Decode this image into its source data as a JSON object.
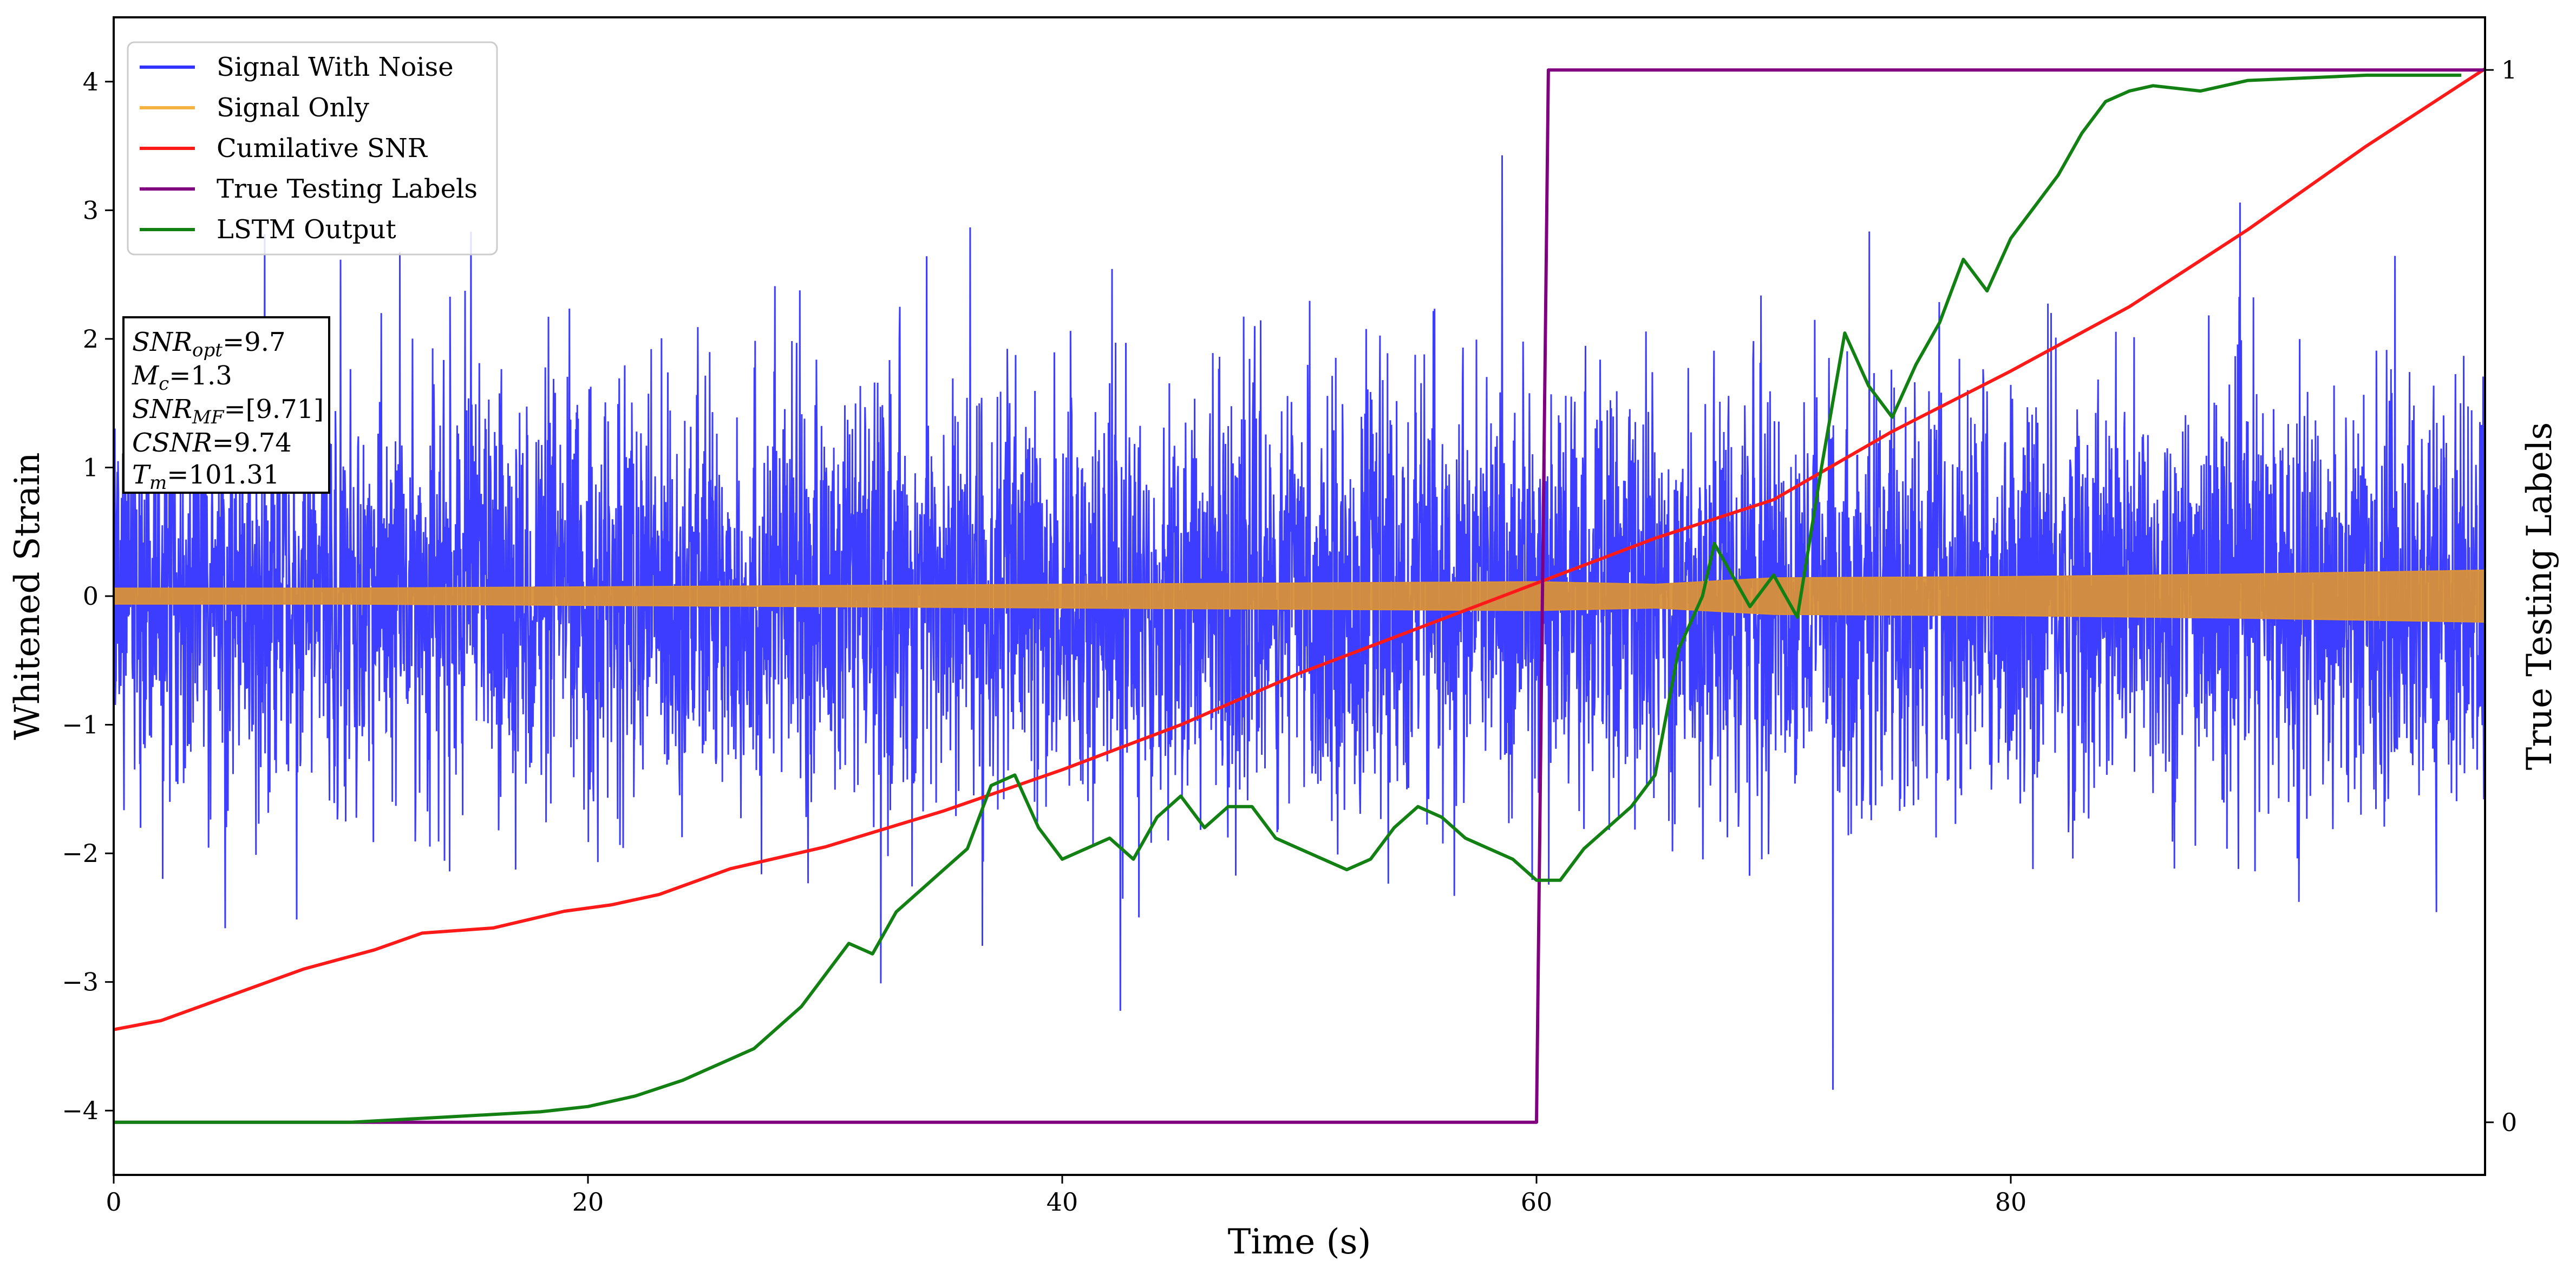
{
  "chart_data": {
    "type": "line",
    "xlabel": "Time (s)",
    "ylabel": "Whitened Strain",
    "ylabel_right": "True Testing Labels",
    "xlim": [
      0,
      100
    ],
    "ylim": [
      -4.5,
      4.5
    ],
    "ylim_right": [
      -0.05,
      1.05
    ],
    "x_ticks": [
      "0",
      "20",
      "40",
      "60",
      "80"
    ],
    "y_ticks": [
      "−4",
      "−3",
      "−2",
      "−1",
      "0",
      "1",
      "2",
      "3",
      "4"
    ],
    "y_right_ticks": [
      "0",
      "1"
    ],
    "grid": false,
    "legend_position": "top-left",
    "legend": [
      {
        "label": "Signal With Noise",
        "color": "#3333ff"
      },
      {
        "label": "Signal Only",
        "color": "#f5b342"
      },
      {
        "label": "Cumilative SNR",
        "color": "#ff1a1a"
      },
      {
        "label": "True Testing Labels",
        "color": "#800080"
      },
      {
        "label": "LSTM Output",
        "color": "#138013"
      }
    ],
    "info_box": {
      "snr_opt": {
        "sym": "SNR",
        "sub": "opt",
        "value": "=9.7"
      },
      "mc": {
        "sym": "M",
        "sub": "c",
        "value": "=1.3"
      },
      "snr_mf": {
        "sym": "SNR",
        "sub": "MF",
        "value": "=[9.71]"
      },
      "csnr": {
        "sym": "CSNR",
        "value": "=9.74"
      },
      "tm": {
        "sym": "T",
        "sub": "m",
        "value": "=101.31"
      }
    },
    "series": [
      {
        "name": "Signal With Noise",
        "axis": "left",
        "noise_sigma": 0.8,
        "amplitude_range": [
          -4.1,
          3.6
        ],
        "x_range": [
          0,
          100
        ]
      },
      {
        "name": "Signal Only",
        "axis": "left",
        "envelope": {
          "x": [
            0,
            10,
            20,
            30,
            40,
            50,
            60,
            65,
            70,
            80,
            90,
            100
          ],
          "amplitude": [
            0.06,
            0.06,
            0.07,
            0.08,
            0.09,
            0.1,
            0.11,
            0.09,
            0.14,
            0.15,
            0.17,
            0.2
          ]
        }
      },
      {
        "name": "Cumilative SNR",
        "axis": "left",
        "x": [
          0,
          2,
          5,
          8,
          11,
          13,
          16,
          19,
          21,
          23,
          26,
          30,
          35,
          40,
          45,
          50,
          55,
          60,
          65,
          70,
          75,
          80,
          85,
          90,
          95,
          100
        ],
        "y": [
          -3.37,
          -3.3,
          -3.1,
          -2.9,
          -2.75,
          -2.62,
          -2.58,
          -2.45,
          -2.4,
          -2.32,
          -2.12,
          -1.95,
          -1.67,
          -1.35,
          -1.0,
          -0.6,
          -0.25,
          0.1,
          0.45,
          0.75,
          1.28,
          1.75,
          2.25,
          2.85,
          3.5,
          4.1
        ]
      },
      {
        "name": "True Testing Labels",
        "axis": "right",
        "x": [
          0,
          60,
          60.5,
          100
        ],
        "y": [
          0,
          0,
          1,
          1
        ]
      },
      {
        "name": "LSTM Output",
        "axis": "right",
        "x": [
          0,
          10,
          14,
          18,
          20,
          22,
          24,
          25,
          26,
          27,
          28,
          29,
          30,
          31,
          32,
          33,
          34,
          35,
          36,
          37,
          38,
          39,
          40,
          41,
          42,
          43,
          44,
          45,
          46,
          47,
          48,
          49,
          50,
          51,
          52,
          53,
          54,
          55,
          56,
          57,
          58,
          59,
          60,
          61,
          62,
          63,
          64,
          65,
          66,
          67,
          67.5,
          68,
          69,
          70,
          71,
          72,
          73,
          74,
          75,
          76,
          77,
          78,
          79,
          80,
          81,
          82,
          83,
          84,
          85,
          86,
          88,
          90,
          95,
          99
        ],
        "y": [
          0,
          0,
          0.005,
          0.01,
          0.015,
          0.025,
          0.04,
          0.05,
          0.06,
          0.07,
          0.09,
          0.11,
          0.14,
          0.17,
          0.16,
          0.2,
          0.22,
          0.24,
          0.26,
          0.32,
          0.33,
          0.28,
          0.25,
          0.26,
          0.27,
          0.25,
          0.29,
          0.31,
          0.28,
          0.3,
          0.3,
          0.27,
          0.26,
          0.25,
          0.24,
          0.25,
          0.28,
          0.3,
          0.29,
          0.27,
          0.26,
          0.25,
          0.23,
          0.23,
          0.26,
          0.28,
          0.3,
          0.33,
          0.45,
          0.5,
          0.55,
          0.53,
          0.49,
          0.52,
          0.48,
          0.62,
          0.75,
          0.7,
          0.67,
          0.72,
          0.76,
          0.82,
          0.79,
          0.84,
          0.87,
          0.9,
          0.94,
          0.97,
          0.98,
          0.985,
          0.98,
          0.99,
          0.995,
          0.995
        ]
      }
    ]
  }
}
